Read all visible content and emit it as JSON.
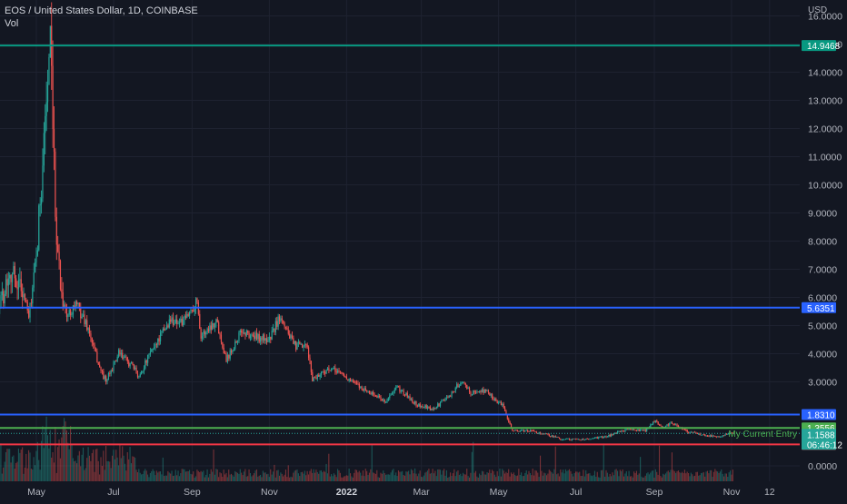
{
  "header": {
    "symbol_line": "EOS / United States Dollar, 1D, COINBASE",
    "indicator": "Vol"
  },
  "chart_data": {
    "type": "candlestick",
    "currency_label": "USD",
    "y_ticks": [
      "16.0000",
      "15.0000",
      "14.0000",
      "13.0000",
      "12.0000",
      "11.0000",
      "10.0000",
      "9.0000",
      "8.0000",
      "7.0000",
      "6.0000",
      "5.0000",
      "4.0000",
      "3.0000",
      "0.0000"
    ],
    "x_ticks": [
      "May",
      "Jul",
      "Sep",
      "Nov",
      "2022",
      "Mar",
      "May",
      "Jul",
      "Sep",
      "Nov",
      "12"
    ],
    "horizontal_lines": [
      {
        "label": "14.9468",
        "value": 14.9468,
        "color": "#089981"
      },
      {
        "label": "5.6351",
        "value": 5.6351,
        "color": "#2962ff"
      },
      {
        "label": "1.8310",
        "value": 1.831,
        "color": "#2962ff"
      },
      {
        "label": "1.3556",
        "value": 1.3556,
        "color": "#4caf50"
      },
      {
        "label": "0.7650",
        "value": 0.765,
        "color": "#f23645"
      }
    ],
    "current_price": {
      "label": "1.1588",
      "countdown": "06:46:12",
      "color": "#26a69a"
    },
    "annotation": "My Current Entry",
    "price_path": [
      [
        "2021-04-01",
        5.6
      ],
      [
        "2021-04-10",
        7.0
      ],
      [
        "2021-04-20",
        6.3
      ],
      [
        "2021-04-25",
        5.3
      ],
      [
        "2021-05-01",
        7.2
      ],
      [
        "2021-05-08",
        12.5
      ],
      [
        "2021-05-12",
        14.8
      ],
      [
        "2021-05-16",
        9.0
      ],
      [
        "2021-05-20",
        6.5
      ],
      [
        "2021-05-25",
        5.3
      ],
      [
        "2021-06-01",
        5.8
      ],
      [
        "2021-06-10",
        5.0
      ],
      [
        "2021-06-20",
        3.5
      ],
      [
        "2021-06-25",
        3.0
      ],
      [
        "2021-07-05",
        4.0
      ],
      [
        "2021-07-15",
        3.6
      ],
      [
        "2021-07-21",
        3.2
      ],
      [
        "2021-08-01",
        4.2
      ],
      [
        "2021-08-15",
        5.2
      ],
      [
        "2021-08-25",
        5.1
      ],
      [
        "2021-09-05",
        5.9
      ],
      [
        "2021-09-08",
        4.6
      ],
      [
        "2021-09-20",
        5.2
      ],
      [
        "2021-09-28",
        3.8
      ],
      [
        "2021-10-10",
        4.8
      ],
      [
        "2021-10-20",
        4.6
      ],
      [
        "2021-11-01",
        4.5
      ],
      [
        "2021-11-10",
        5.4
      ],
      [
        "2021-11-20",
        4.3
      ],
      [
        "2021-12-01",
        4.2
      ],
      [
        "2021-12-05",
        3.1
      ],
      [
        "2021-12-15",
        3.4
      ],
      [
        "2021-12-25",
        3.4
      ],
      [
        "2022-01-05",
        3.0
      ],
      [
        "2022-01-20",
        2.6
      ],
      [
        "2022-02-01",
        2.3
      ],
      [
        "2022-02-10",
        2.8
      ],
      [
        "2022-02-25",
        2.2
      ],
      [
        "2022-03-10",
        2.0
      ],
      [
        "2022-03-25",
        2.6
      ],
      [
        "2022-04-01",
        3.0
      ],
      [
        "2022-04-10",
        2.6
      ],
      [
        "2022-04-20",
        2.7
      ],
      [
        "2022-04-30",
        2.3
      ],
      [
        "2022-05-05",
        2.1
      ],
      [
        "2022-05-12",
        1.25
      ],
      [
        "2022-05-25",
        1.25
      ],
      [
        "2022-06-10",
        1.1
      ],
      [
        "2022-06-20",
        0.95
      ],
      [
        "2022-07-10",
        0.95
      ],
      [
        "2022-07-25",
        1.05
      ],
      [
        "2022-08-10",
        1.3
      ],
      [
        "2022-08-25",
        1.25
      ],
      [
        "2022-09-01",
        1.6
      ],
      [
        "2022-09-08",
        1.35
      ],
      [
        "2022-09-15",
        1.55
      ],
      [
        "2022-09-25",
        1.25
      ],
      [
        "2022-10-10",
        1.1
      ],
      [
        "2022-10-20",
        1.05
      ],
      [
        "2022-11-01",
        1.15
      ],
      [
        "2022-11-03",
        1.1588
      ]
    ]
  }
}
